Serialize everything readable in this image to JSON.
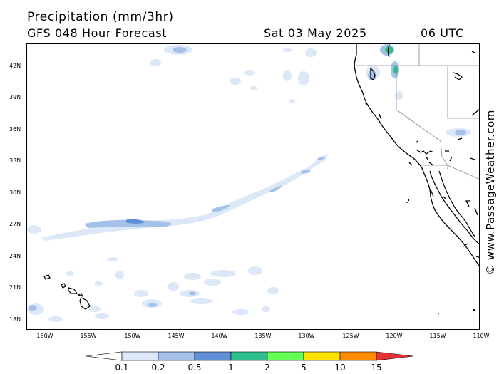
{
  "header": {
    "title": "Precipitation (mm/3hr)",
    "subtitle": "GFS 048 Hour Forecast",
    "date": "Sat 03 May 2025",
    "time": "06 UTC"
  },
  "map": {
    "lat_labels": [
      "42N",
      "39N",
      "36N",
      "33N",
      "30N",
      "27N",
      "24N",
      "21N",
      "18N"
    ],
    "lon_labels": [
      "160W",
      "155W",
      "150W",
      "145W",
      "140W",
      "135W",
      "130W",
      "125W",
      "120W",
      "115W",
      "110W"
    ],
    "watermark": "© www.PassageWeather.com"
  },
  "legend": {
    "labels": [
      "0.1",
      "0.2",
      "0.5",
      "1",
      "2",
      "5",
      "10",
      "15"
    ],
    "colors": [
      "#ffffff",
      "#dce8f7",
      "#a4c2e8",
      "#5f8fd6",
      "#2fbf8f",
      "#66ff55",
      "#ffe100",
      "#ff8c00",
      "#e63232"
    ]
  }
}
